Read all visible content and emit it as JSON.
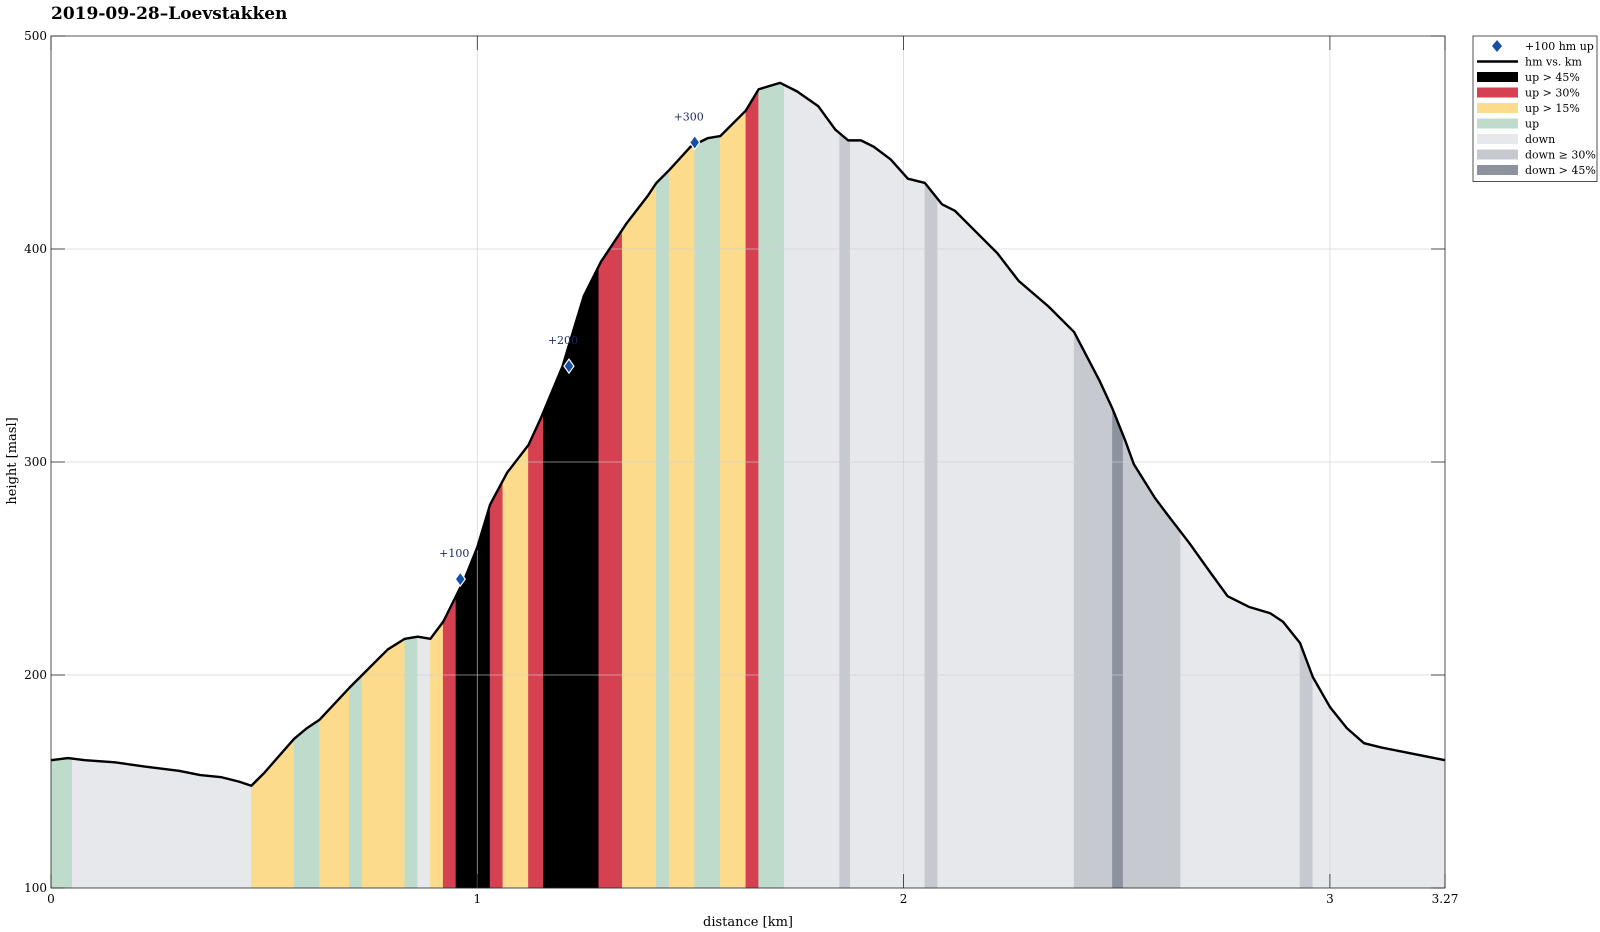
{
  "chart_data": {
    "type": "area",
    "title": "2019-09-28–Loevstakken",
    "xlabel": "distance [km]",
    "ylabel": "height [masl]",
    "xlim": [
      0,
      3.27
    ],
    "ylim": [
      100,
      500
    ],
    "x_ticks": [
      0,
      1,
      2,
      3,
      3.27
    ],
    "x_tick_labels": [
      "0",
      "1",
      "2",
      "3",
      "3.27"
    ],
    "y_ticks": [
      100,
      200,
      300,
      400,
      500
    ],
    "y_tick_labels": [
      "100",
      "200",
      "300",
      "400",
      "500"
    ],
    "grid": true,
    "legend_position": "top-right (outside plot)",
    "legend": [
      {
        "key": "marker",
        "label": "+100 hm up",
        "color": "#1550a8"
      },
      {
        "key": "line",
        "label": "hm vs. km",
        "color": "#000000"
      },
      {
        "key": "up45",
        "label": "up > 45%",
        "color": "#000000"
      },
      {
        "key": "up30",
        "label": "up > 30%",
        "color": "#d64152"
      },
      {
        "key": "up15",
        "label": "up > 15%",
        "color": "#fcdc8c"
      },
      {
        "key": "up",
        "label": "up",
        "color": "#bedbcc"
      },
      {
        "key": "down",
        "label": "down",
        "color": "#e7e8ec"
      },
      {
        "key": "down30",
        "label": "down ≥ 30%",
        "color": "#c6c9d0"
      },
      {
        "key": "down45",
        "label": "down > 45%",
        "color": "#8c929e"
      }
    ],
    "profile": {
      "x": [
        0,
        0.04,
        0.08,
        0.15,
        0.22,
        0.3,
        0.35,
        0.4,
        0.44,
        0.47,
        0.5,
        0.57,
        0.6,
        0.63,
        0.7,
        0.73,
        0.79,
        0.83,
        0.86,
        0.89,
        0.92,
        0.95,
        0.97,
        1.0,
        1.03,
        1.07,
        1.12,
        1.15,
        1.2,
        1.25,
        1.29,
        1.35,
        1.4,
        1.42,
        1.45,
        1.5,
        1.54,
        1.57,
        1.63,
        1.66,
        1.71,
        1.75,
        1.8,
        1.84,
        1.87,
        1.9,
        1.93,
        1.97,
        2.01,
        2.05,
        2.09,
        2.12,
        2.17,
        2.22,
        2.27,
        2.34,
        2.4,
        2.46,
        2.49,
        2.52,
        2.54,
        2.59,
        2.62,
        2.67,
        2.72,
        2.76,
        2.81,
        2.86,
        2.89,
        2.93,
        2.96,
        3.0,
        3.04,
        3.08,
        3.12,
        3.17,
        3.22,
        3.27
      ],
      "y": [
        160,
        161,
        160,
        159,
        157,
        155,
        153,
        152,
        150,
        148,
        154,
        170,
        175,
        179,
        194,
        200,
        212,
        217,
        218,
        217,
        225,
        237,
        245,
        260,
        280,
        295,
        308,
        321,
        345,
        378,
        394,
        412,
        425,
        431,
        437,
        448,
        452,
        453,
        465,
        475,
        478,
        474,
        467,
        456,
        451,
        451,
        448,
        442,
        433,
        431,
        421,
        418,
        408,
        398,
        385,
        373,
        361,
        338,
        325,
        310,
        299,
        283,
        275,
        262,
        248,
        237,
        232,
        229,
        225,
        215,
        199,
        185,
        175,
        168,
        166,
        164,
        162,
        160
      ]
    },
    "bands": [
      {
        "x0": 0.0,
        "x1": 0.05,
        "cat": "up"
      },
      {
        "x0": 0.05,
        "x1": 0.47,
        "cat": "down"
      },
      {
        "x0": 0.47,
        "x1": 0.57,
        "cat": "up15"
      },
      {
        "x0": 0.57,
        "x1": 0.63,
        "cat": "up"
      },
      {
        "x0": 0.63,
        "x1": 0.7,
        "cat": "up15"
      },
      {
        "x0": 0.7,
        "x1": 0.73,
        "cat": "up"
      },
      {
        "x0": 0.73,
        "x1": 0.83,
        "cat": "up15"
      },
      {
        "x0": 0.83,
        "x1": 0.86,
        "cat": "up"
      },
      {
        "x0": 0.86,
        "x1": 0.89,
        "cat": "down"
      },
      {
        "x0": 0.89,
        "x1": 0.92,
        "cat": "up15"
      },
      {
        "x0": 0.92,
        "x1": 0.95,
        "cat": "up30"
      },
      {
        "x0": 0.95,
        "x1": 1.03,
        "cat": "up45"
      },
      {
        "x0": 1.03,
        "x1": 1.06,
        "cat": "up30"
      },
      {
        "x0": 1.06,
        "x1": 1.12,
        "cat": "up15"
      },
      {
        "x0": 1.12,
        "x1": 1.155,
        "cat": "up30"
      },
      {
        "x0": 1.155,
        "x1": 1.285,
        "cat": "up45"
      },
      {
        "x0": 1.285,
        "x1": 1.34,
        "cat": "up30"
      },
      {
        "x0": 1.34,
        "x1": 1.42,
        "cat": "up15"
      },
      {
        "x0": 1.42,
        "x1": 1.45,
        "cat": "up"
      },
      {
        "x0": 1.45,
        "x1": 1.51,
        "cat": "up15"
      },
      {
        "x0": 1.51,
        "x1": 1.57,
        "cat": "up"
      },
      {
        "x0": 1.57,
        "x1": 1.63,
        "cat": "up15"
      },
      {
        "x0": 1.63,
        "x1": 1.66,
        "cat": "up30"
      },
      {
        "x0": 1.66,
        "x1": 1.72,
        "cat": "up"
      },
      {
        "x0": 1.72,
        "x1": 1.85,
        "cat": "down"
      },
      {
        "x0": 1.85,
        "x1": 1.875,
        "cat": "down30"
      },
      {
        "x0": 1.875,
        "x1": 2.05,
        "cat": "down"
      },
      {
        "x0": 2.05,
        "x1": 2.08,
        "cat": "down30"
      },
      {
        "x0": 2.08,
        "x1": 2.4,
        "cat": "down"
      },
      {
        "x0": 2.4,
        "x1": 2.49,
        "cat": "down30"
      },
      {
        "x0": 2.49,
        "x1": 2.515,
        "cat": "down45"
      },
      {
        "x0": 2.515,
        "x1": 2.65,
        "cat": "down30"
      },
      {
        "x0": 2.65,
        "x1": 2.93,
        "cat": "down"
      },
      {
        "x0": 2.93,
        "x1": 2.96,
        "cat": "down30"
      },
      {
        "x0": 2.96,
        "x1": 3.27,
        "cat": "down"
      }
    ],
    "markers": [
      {
        "x": 0.96,
        "y": 245,
        "label": "+100"
      },
      {
        "x": 1.215,
        "y": 345,
        "label": "+200"
      },
      {
        "x": 1.51,
        "y": 450,
        "label": "+300"
      }
    ]
  }
}
